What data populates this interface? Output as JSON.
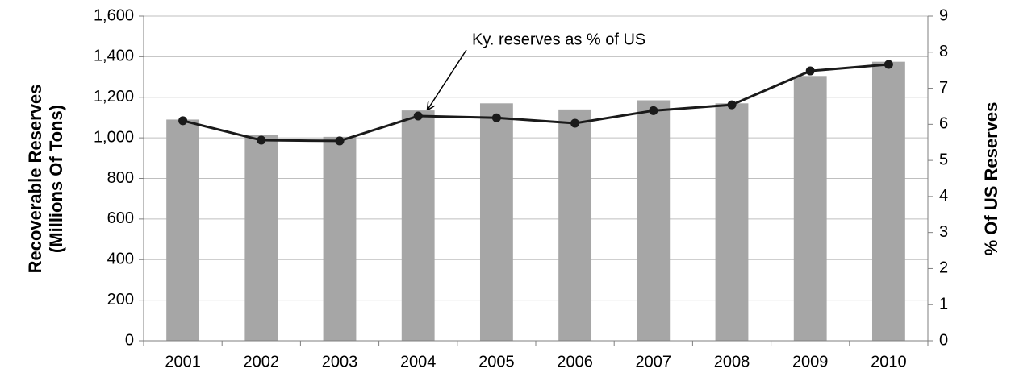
{
  "chart_data": {
    "type": "bar",
    "categories": [
      "2001",
      "2002",
      "2003",
      "2004",
      "2005",
      "2006",
      "2007",
      "2008",
      "2009",
      "2010"
    ],
    "series": [
      {
        "type": "bar",
        "color": "#a6a6a6",
        "values": [
          1090,
          1015,
          1005,
          1135,
          1170,
          1140,
          1185,
          1170,
          1305,
          1375
        ]
      },
      {
        "type": "line",
        "axis": "y2",
        "color": "#1a1a1a",
        "values": [
          6.1,
          5.56,
          5.54,
          6.23,
          6.18,
          6.03,
          6.38,
          6.54,
          7.48,
          7.66
        ]
      }
    ],
    "ylabel": [
      "Recoverable Reserves",
      "(Millions Of Tons)"
    ],
    "y2label": "% Of US Reserves",
    "annotation": "Ky. reserves as % of US",
    "ylim": [
      0,
      1600
    ],
    "yticks": [
      0,
      200,
      400,
      600,
      800,
      {
        "value": 1000,
        "label": "1,000"
      },
      {
        "value": 1200,
        "label": "1,200"
      },
      {
        "value": 1400,
        "label": "1,400"
      },
      {
        "value": 1600,
        "label": "1,600"
      }
    ],
    "y2lim": [
      0,
      9
    ],
    "y2ticks": [
      0,
      1,
      2,
      3,
      4,
      5,
      6,
      7,
      8,
      9
    ],
    "grid": true
  }
}
